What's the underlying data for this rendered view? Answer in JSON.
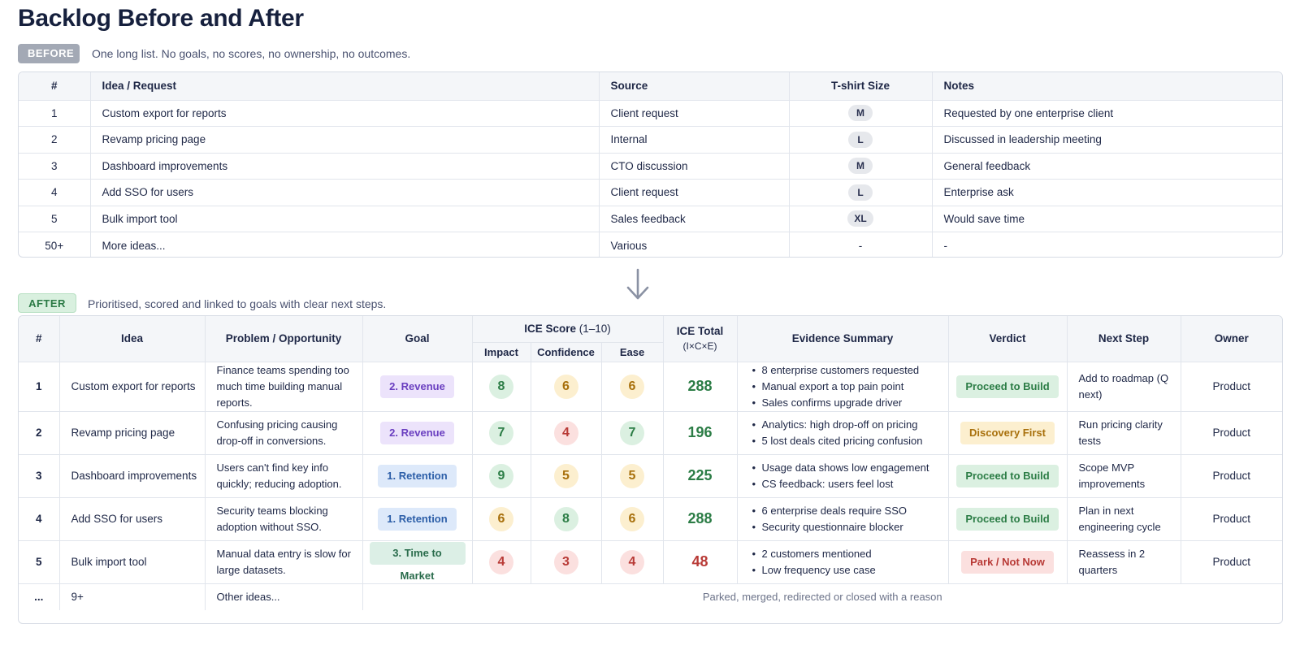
{
  "title": "Backlog Before and After",
  "before": {
    "tag": "BEFORE",
    "description": "One long list. No goals, no scores, no ownership, no outcomes.",
    "headers": [
      "#",
      "Idea / Request",
      "Source",
      "T-shirt Size",
      "Notes"
    ],
    "rows": [
      {
        "num": "1",
        "idea": "Custom export for reports",
        "source": "Client request",
        "size": "M",
        "notes": "Requested by one enterprise client"
      },
      {
        "num": "2",
        "idea": "Revamp pricing page",
        "source": "Internal",
        "size": "L",
        "notes": "Discussed in leadership meeting"
      },
      {
        "num": "3",
        "idea": "Dashboard improvements",
        "source": "CTO discussion",
        "size": "M",
        "notes": "General feedback"
      },
      {
        "num": "4",
        "idea": "Add SSO for users",
        "source": "Client request",
        "size": "L",
        "notes": "Enterprise ask"
      },
      {
        "num": "5",
        "idea": "Bulk import tool",
        "source": "Sales feedback",
        "size": "XL",
        "notes": "Would save time"
      },
      {
        "num": "50+",
        "idea": "More ideas...",
        "source": "Various",
        "size": "-",
        "notes": "-"
      }
    ]
  },
  "after": {
    "tag": "AFTER",
    "description": "Prioritised, scored and linked to goals with clear next steps.",
    "headers": {
      "num": "#",
      "idea": "Idea",
      "problem": "Problem / Opportunity",
      "goal": "Goal",
      "ice_score": "ICE Score",
      "ice_score_range": "(1–10)",
      "impact": "Impact",
      "confidence": "Confidence",
      "ease": "Ease",
      "ice_total": "ICE Total",
      "ice_total_formula": "(I×C×E)",
      "evidence": "Evidence Summary",
      "verdict": "Verdict",
      "next_step": "Next Step",
      "owner": "Owner"
    },
    "rows": [
      {
        "num": "1",
        "idea": "Custom export for reports",
        "problem": "Finance teams spending too much time building manual reports.",
        "goal": "2. Revenue",
        "impact": "8",
        "confidence": "6",
        "ease": "6",
        "total": "288",
        "evidence": [
          "8 enterprise customers requested",
          "Manual export a top pain point",
          "Sales confirms upgrade driver"
        ],
        "verdict": "Proceed to Build",
        "next_step": "Add to roadmap (Q next)",
        "owner": "Product"
      },
      {
        "num": "2",
        "idea": "Revamp pricing page",
        "problem": "Confusing pricing causing drop-off in conversions.",
        "goal": "2. Revenue",
        "impact": "7",
        "confidence": "4",
        "ease": "7",
        "total": "196",
        "evidence": [
          "Analytics: high drop-off on pricing",
          "5 lost deals cited pricing confusion"
        ],
        "verdict": "Discovery First",
        "next_step": "Run pricing clarity tests",
        "owner": "Product"
      },
      {
        "num": "3",
        "idea": "Dashboard improvements",
        "problem": "Users can't find key info quickly; reducing adoption.",
        "goal": "1. Retention",
        "impact": "9",
        "confidence": "5",
        "ease": "5",
        "total": "225",
        "evidence": [
          "Usage data shows low engagement",
          "CS feedback: users feel lost"
        ],
        "verdict": "Proceed to Build",
        "next_step": "Scope MVP improvements",
        "owner": "Product"
      },
      {
        "num": "4",
        "idea": "Add SSO for users",
        "problem": "Security teams blocking adoption without SSO.",
        "goal": "1. Retention",
        "impact": "6",
        "confidence": "8",
        "ease": "6",
        "total": "288",
        "evidence": [
          "6 enterprise deals require SSO",
          "Security questionnaire blocker"
        ],
        "verdict": "Proceed to Build",
        "next_step": "Plan in next engineering cycle",
        "owner": "Product"
      },
      {
        "num": "5",
        "idea": "Bulk import tool",
        "problem": "Manual data entry is slow for large datasets.",
        "goal": "3. Time to Market",
        "impact": "4",
        "confidence": "3",
        "ease": "4",
        "total": "48",
        "evidence": [
          "2 customers mentioned",
          "Low frequency use case"
        ],
        "verdict": "Park / Not Now",
        "next_step": "Reassess in 2 quarters",
        "owner": "Product"
      }
    ],
    "last_row": {
      "num": "...",
      "idea": "9+",
      "problem": "Other ideas...",
      "note": "Parked, merged, redirected or closed with a reason"
    }
  },
  "colors": {
    "score_high": "#2c7d46",
    "score_mid": "#a8700c",
    "score_low": "#b83a36",
    "goal_revenue": "#6a3fc0",
    "goal_retention": "#2c5ea8",
    "goal_time_to_market": "#2a6c4c"
  },
  "icons": {
    "divider_arrow": "arrow-down-icon"
  }
}
